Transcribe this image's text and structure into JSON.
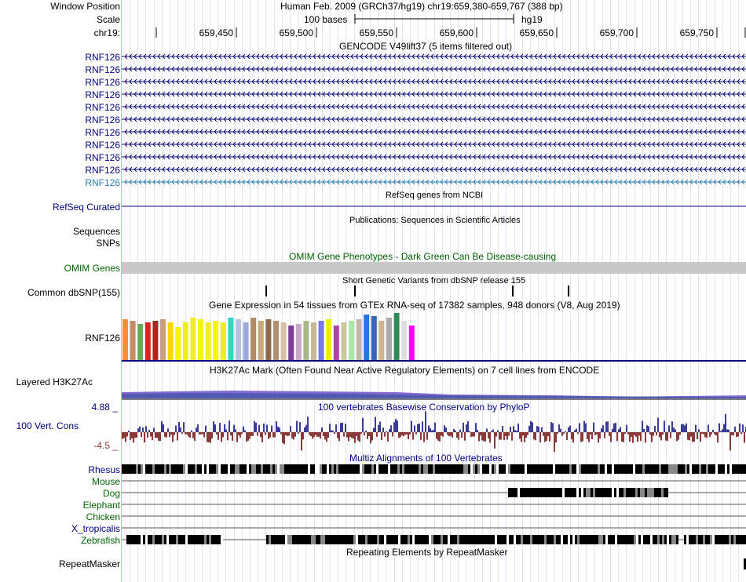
{
  "header": {
    "window_position_label": "Window Position",
    "scale_label": "Scale",
    "chr_label": "chr19:",
    "position_title": "Human Feb. 2009 (GRCh37/hg19)   chr19:659,380-659,767 (388 bp)",
    "scale_text": "100 bases",
    "assembly": "hg19",
    "ruler_ticks": [
      "659,450",
      "659,500",
      "659,550",
      "659,600",
      "659,650",
      "659,700",
      "659,750"
    ]
  },
  "tracks": {
    "gencode": {
      "title": "GENCODE V49lift37 (5 items filtered out)",
      "items": [
        "RNF126",
        "RNF126",
        "RNF126",
        "RNF126",
        "RNF126",
        "RNF126",
        "RNF126",
        "RNF126",
        "RNF126",
        "RNF126",
        "RNF126"
      ]
    },
    "refseq": {
      "title": "RefSeq genes from NCBI",
      "label": "RefSeq Curated"
    },
    "publications": {
      "title": "Publications: Sequences in Scientific Articles",
      "labels": [
        "Sequences",
        "SNPs"
      ]
    },
    "omim": {
      "title": "OMIM Gene Phenotypes - Dark Green Can Be Disease-causing",
      "label": "OMIM Genes"
    },
    "dbsnp": {
      "title": "Short Genetic Variants from dbSNP release 155",
      "label": "Common dbSNP(155)"
    },
    "gtex": {
      "title": "Gene Expression in 54 tissues from GTEx RNA-seq of 17382 samples, 948 donors (V8, Aug 2019)",
      "label": "RNF126"
    },
    "h3k27ac": {
      "title": "H3K27Ac Mark (Often Found Near Active Regulatory Elements) on 7 cell lines from ENCODE",
      "label": "Layered H3K27Ac"
    },
    "phylop": {
      "title": "100 vertebrates Basewise Conservation by PhyloP",
      "label": "100 Vert. Cons",
      "max_label": "4.88 _",
      "min_label": "-4.5 _"
    },
    "multiz": {
      "title": "Multiz Alignments of 100 Vertebrates",
      "species": [
        "Rhesus",
        "Mouse",
        "Dog",
        "Elephant",
        "Chicken",
        "X_tropicalis",
        "Zebrafish"
      ]
    },
    "repeatmasker": {
      "title": "Repeating Elements by RepeatMasker",
      "label": "RepeatMasker"
    }
  },
  "colors": {
    "gene_navy": "#0c0c78",
    "gene_highlight": "#2e7fb0",
    "track_navy": "#000080",
    "omim_green": "#006400",
    "omim_bar": "#c8c8c8",
    "phylop_pos": "#3c3c96",
    "phylop_neg": "#8b3a3a",
    "h3k27ac_purple": "#7050c8",
    "gtex_bars": [
      "#ff8c3c",
      "#c88c64",
      "#66aa55",
      "#dd2222",
      "#b22222",
      "#c8a07c",
      "#ffd700",
      "#f5f500",
      "#eeee22",
      "#eeee22",
      "#f5f500",
      "#eeee22",
      "#f5f500",
      "#eeee22",
      "#30d5c8",
      "#b0c4de",
      "#9aaadc",
      "#b08c64",
      "#c8a87c",
      "#8b6b4b",
      "#b09070",
      "#d8c0a8",
      "#7c3c9c",
      "#c8a8c8",
      "#a8b888",
      "#c8b898",
      "#7878e8",
      "#eeee00",
      "#b040b0",
      "#c8c8a0",
      "#a8e8a8",
      "#c0b8a8",
      "#2277dd",
      "#3366bb",
      "#d2b48c",
      "#aaaaaa",
      "#2e8b57",
      "#dddddd",
      "#ff00ff"
    ]
  }
}
